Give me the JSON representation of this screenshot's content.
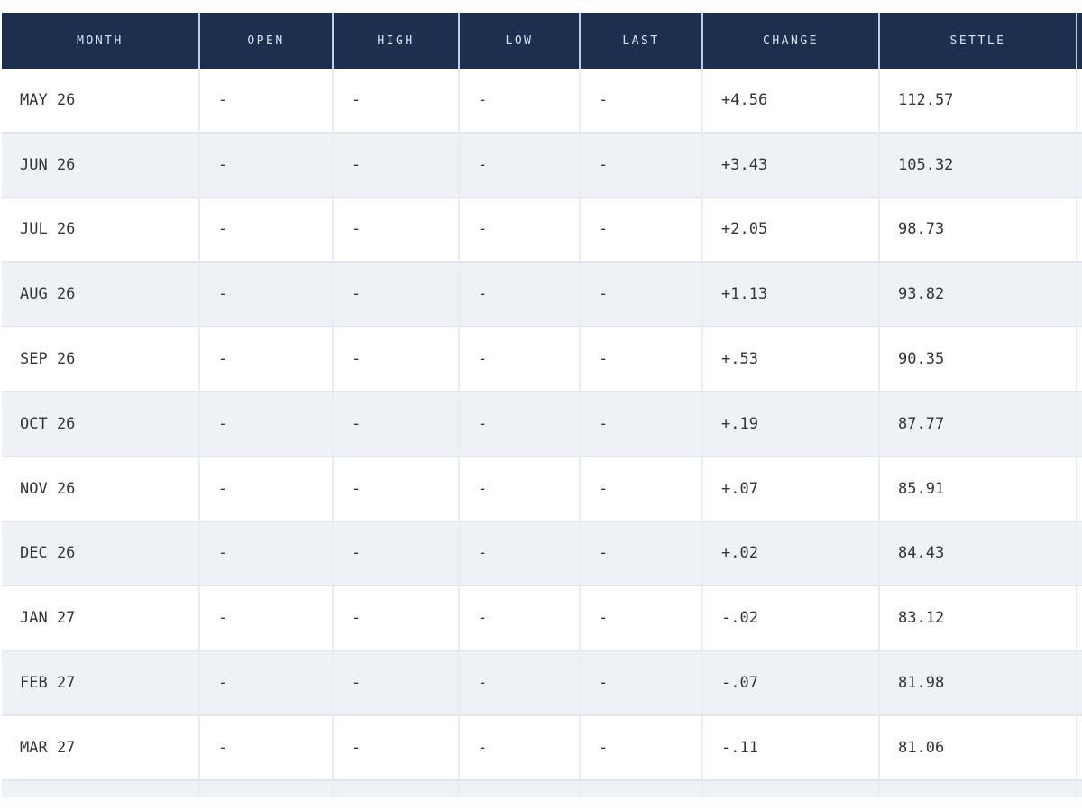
{
  "table": {
    "columns": [
      {
        "key": "month",
        "label": "MONTH"
      },
      {
        "key": "open",
        "label": "OPEN"
      },
      {
        "key": "high",
        "label": "HIGH"
      },
      {
        "key": "low",
        "label": "LOW"
      },
      {
        "key": "last",
        "label": "LAST"
      },
      {
        "key": "change",
        "label": "CHANGE"
      },
      {
        "key": "settle",
        "label": "SETTLE"
      },
      {
        "key": "extra",
        "label": ""
      }
    ],
    "rows": [
      {
        "month": "MAY 26",
        "open": "-",
        "high": "-",
        "low": "-",
        "last": "-",
        "change": "+4.56",
        "settle": "112.57",
        "extra": ""
      },
      {
        "month": "JUN 26",
        "open": "-",
        "high": "-",
        "low": "-",
        "last": "-",
        "change": "+3.43",
        "settle": "105.32",
        "extra": ""
      },
      {
        "month": "JUL 26",
        "open": "-",
        "high": "-",
        "low": "-",
        "last": "-",
        "change": "+2.05",
        "settle": "98.73",
        "extra": ""
      },
      {
        "month": "AUG 26",
        "open": "-",
        "high": "-",
        "low": "-",
        "last": "-",
        "change": "+1.13",
        "settle": "93.82",
        "extra": ""
      },
      {
        "month": "SEP 26",
        "open": "-",
        "high": "-",
        "low": "-",
        "last": "-",
        "change": "+.53",
        "settle": "90.35",
        "extra": ""
      },
      {
        "month": "OCT 26",
        "open": "-",
        "high": "-",
        "low": "-",
        "last": "-",
        "change": "+.19",
        "settle": "87.77",
        "extra": ""
      },
      {
        "month": "NOV 26",
        "open": "-",
        "high": "-",
        "low": "-",
        "last": "-",
        "change": "+.07",
        "settle": "85.91",
        "extra": ""
      },
      {
        "month": "DEC 26",
        "open": "-",
        "high": "-",
        "low": "-",
        "last": "-",
        "change": "+.02",
        "settle": "84.43",
        "extra": ""
      },
      {
        "month": "JAN 27",
        "open": "-",
        "high": "-",
        "low": "-",
        "last": "-",
        "change": "-.02",
        "settle": "83.12",
        "extra": ""
      },
      {
        "month": "FEB 27",
        "open": "-",
        "high": "-",
        "low": "-",
        "last": "-",
        "change": "-.07",
        "settle": "81.98",
        "extra": ""
      },
      {
        "month": "MAR 27",
        "open": "-",
        "high": "-",
        "low": "-",
        "last": "-",
        "change": "-.11",
        "settle": "81.06",
        "extra": ""
      },
      {
        "month": "",
        "open": "",
        "high": "",
        "low": "",
        "last": "",
        "change": "",
        "settle": "",
        "extra": ""
      }
    ],
    "colors": {
      "header_bg": "#1c2f4e",
      "header_text": "#d9e1ec",
      "header_divider": "#c3cfdf",
      "row_bg": "#ffffff",
      "row_alt_bg": "#eef2f7",
      "cell_text": "#31363c",
      "divider": "#e1e6ed"
    }
  }
}
